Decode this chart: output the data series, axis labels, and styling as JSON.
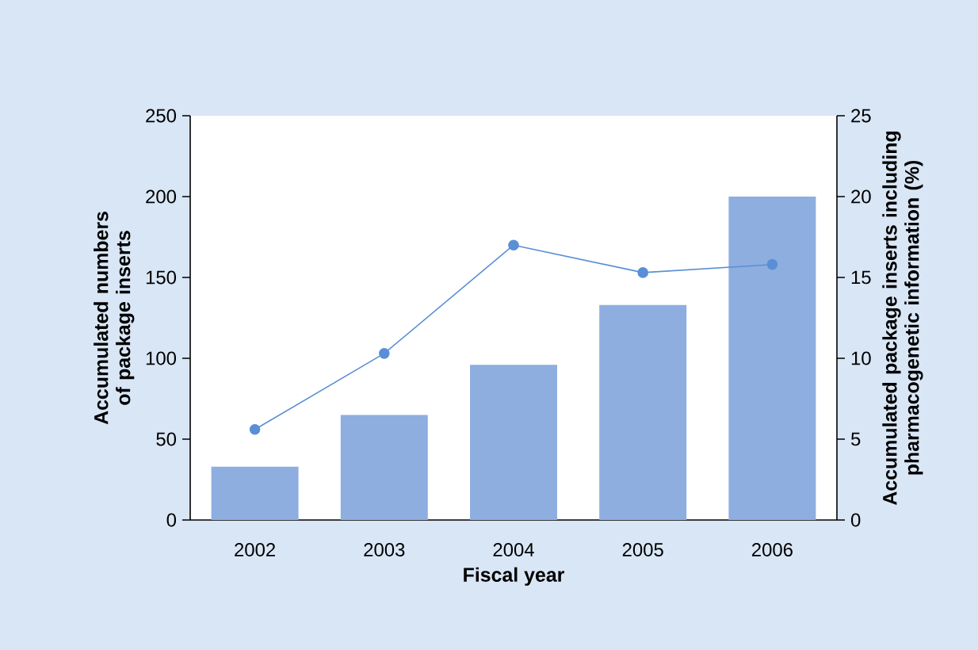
{
  "chart_data": {
    "type": "bar",
    "xlabel": "Fiscal year",
    "ylabel": "Accumulated numbers of package inserts",
    "y2label": "Accumulated package inserts including pharmacogenetic information (%)",
    "categories": [
      "2002",
      "2003",
      "2004",
      "2005",
      "2006"
    ],
    "series": [
      {
        "color": "#8eaee0",
        "values": [
          33,
          65,
          96,
          133,
          200
        ]
      },
      {
        "type": "line",
        "axis": "y2",
        "color": "#5a8fd6",
        "values": [
          5.6,
          10.3,
          17.0,
          15.3,
          15.8
        ]
      }
    ],
    "ylim": [
      0,
      250
    ],
    "yticks": [
      0,
      50,
      100,
      150,
      200,
      250
    ],
    "y2lim": [
      0,
      25
    ],
    "y2ticks": [
      0,
      5,
      10,
      15,
      20,
      25
    ],
    "marker": "circle"
  }
}
